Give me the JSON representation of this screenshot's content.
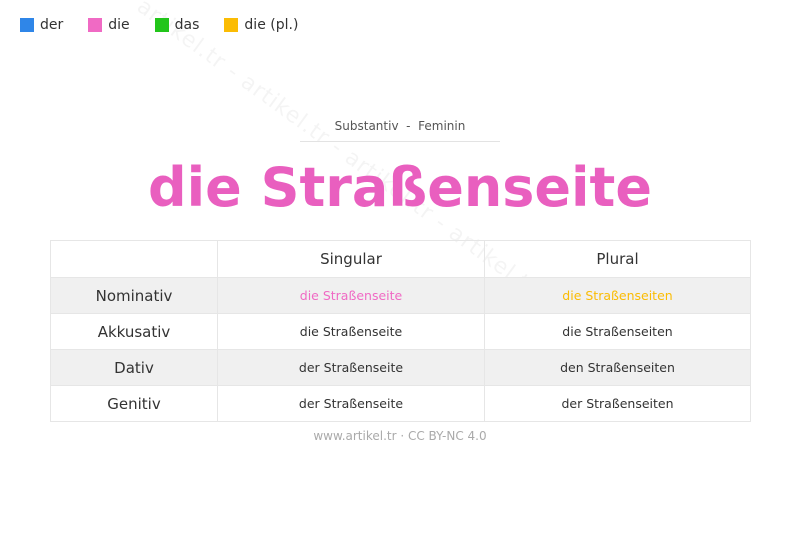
{
  "watermark": "artikel.tr - artikel.tr - artikel.tr - artikel.tr - artikel.tr",
  "legend": [
    {
      "label": "der",
      "color": "#2f86e8"
    },
    {
      "label": "die",
      "color": "#f06ac4"
    },
    {
      "label": "das",
      "color": "#22c51a"
    },
    {
      "label": "die (pl.)",
      "color": "#fbbc04"
    }
  ],
  "subtitle": "Substantiv  -  Feminin",
  "title": "die Straßenseite",
  "title_color": "#e95fbf",
  "table": {
    "headers": [
      "",
      "Singular",
      "Plural"
    ],
    "rows": [
      {
        "case": "Nominativ",
        "singular": "die Straßenseite",
        "plural": "die Straßenseiten"
      },
      {
        "case": "Akkusativ",
        "singular": "die Straßenseite",
        "plural": "die Straßenseiten"
      },
      {
        "case": "Dativ",
        "singular": "der Straßenseite",
        "plural": "den Straßenseiten"
      },
      {
        "case": "Genitiv",
        "singular": "der Straßenseite",
        "plural": "der Straßenseiten"
      }
    ],
    "highlight_singular_color": "#f06ac4",
    "highlight_plural_color": "#fbbc04"
  },
  "footer": "www.artikel.tr · CC BY-NC 4.0"
}
